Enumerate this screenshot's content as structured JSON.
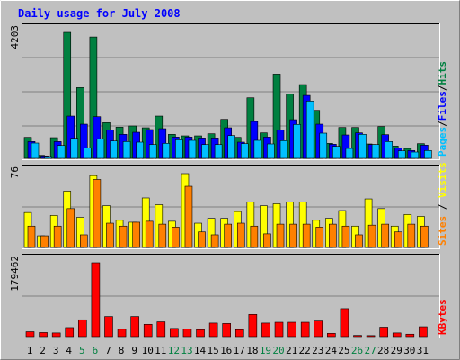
{
  "chart_data": [
    {
      "type": "bar",
      "title": "Daily usage for July 2008",
      "categories": [
        "1",
        "2",
        "3",
        "4",
        "5",
        "6",
        "7",
        "8",
        "9",
        "10",
        "11",
        "12",
        "13",
        "14",
        "15",
        "16",
        "17",
        "18",
        "19",
        "20",
        "21",
        "22",
        "23",
        "24",
        "25",
        "26",
        "27",
        "28",
        "29",
        "30",
        "31"
      ],
      "weekend_categories": [
        "5",
        "6",
        "12",
        "13",
        "19",
        "20",
        "26",
        "27"
      ],
      "ylim": [
        0,
        4203
      ],
      "y_tick_label": "4203",
      "legend": [
        {
          "label": "Pages",
          "color": "#00c0ff"
        },
        {
          "label": "/",
          "color": "#000000"
        },
        {
          "label": "Files",
          "color": "#0000ff"
        },
        {
          "label": "/",
          "color": "#000000"
        },
        {
          "label": "Hits",
          "color": "#008040"
        }
      ],
      "series": [
        {
          "name": "Hits",
          "color": "#008040",
          "values": [
            700,
            100,
            690,
            4203,
            2360,
            4050,
            1190,
            1040,
            1080,
            1020,
            1410,
            800,
            750,
            750,
            820,
            1300,
            700,
            2020,
            850,
            2810,
            2140,
            2460,
            1600,
            500,
            1030,
            1030,
            480,
            1060,
            410,
            330,
            490
          ]
        },
        {
          "name": "Files",
          "color": "#0000ff",
          "values": [
            560,
            80,
            560,
            1410,
            1140,
            1390,
            950,
            800,
            870,
            960,
            990,
            710,
            710,
            680,
            680,
            1020,
            540,
            1230,
            710,
            950,
            1290,
            2100,
            1140,
            470,
            780,
            850,
            460,
            790,
            350,
            260,
            440
          ]
        },
        {
          "name": "Pages",
          "color": "#00c0ff",
          "values": [
            510,
            60,
            430,
            670,
            350,
            640,
            580,
            560,
            540,
            460,
            500,
            620,
            600,
            460,
            460,
            760,
            490,
            600,
            480,
            590,
            1130,
            1910,
            840,
            400,
            330,
            800,
            460,
            560,
            250,
            210,
            260
          ]
        }
      ]
    },
    {
      "type": "bar",
      "categories": [
        "1",
        "2",
        "3",
        "4",
        "5",
        "6",
        "7",
        "8",
        "9",
        "10",
        "11",
        "12",
        "13",
        "14",
        "15",
        "16",
        "17",
        "18",
        "19",
        "20",
        "21",
        "22",
        "23",
        "24",
        "25",
        "26",
        "27",
        "28",
        "29",
        "30",
        "31"
      ],
      "ylim": [
        0,
        76
      ],
      "y_tick_label": "76",
      "legend": [
        {
          "label": "Sites",
          "color": "#ff8000"
        },
        {
          "label": " / ",
          "color": "#000000"
        },
        {
          "label": "Visits",
          "color": "#ffff00"
        }
      ],
      "series": [
        {
          "name": "Visits",
          "color": "#ffff00",
          "values": [
            36,
            12,
            33,
            58,
            31,
            74,
            43,
            28,
            26,
            51,
            44,
            27,
            76,
            25,
            30,
            30,
            37,
            47,
            43,
            45,
            47,
            47,
            28,
            30,
            38,
            22,
            50,
            40,
            22,
            34,
            32
          ]
        },
        {
          "name": "Sites",
          "color": "#ff8000",
          "values": [
            22,
            12,
            22,
            40,
            13,
            70,
            25,
            22,
            26,
            27,
            24,
            21,
            63,
            16,
            13,
            24,
            25,
            22,
            14,
            24,
            24,
            24,
            21,
            24,
            22,
            13,
            23,
            24,
            16,
            24,
            22
          ]
        }
      ]
    },
    {
      "type": "bar",
      "categories": [
        "1",
        "2",
        "3",
        "4",
        "5",
        "6",
        "7",
        "8",
        "9",
        "10",
        "11",
        "12",
        "13",
        "14",
        "15",
        "16",
        "17",
        "18",
        "19",
        "20",
        "21",
        "22",
        "23",
        "24",
        "25",
        "26",
        "27",
        "28",
        "29",
        "30",
        "31"
      ],
      "ylim": [
        0,
        179462
      ],
      "y_tick_label": "179462",
      "legend": [
        {
          "label": "KBytes",
          "color": "#ff0000"
        }
      ],
      "series": [
        {
          "name": "KBytes",
          "color": "#ff0000",
          "values": [
            12000,
            10000,
            9000,
            22000,
            41000,
            179462,
            49000,
            18000,
            49000,
            30000,
            36000,
            20000,
            19000,
            17000,
            33000,
            32000,
            17000,
            54000,
            33000,
            35000,
            35000,
            35000,
            38000,
            8000,
            68000,
            3000,
            2500,
            23000,
            9000,
            6000,
            24000
          ]
        }
      ]
    }
  ]
}
